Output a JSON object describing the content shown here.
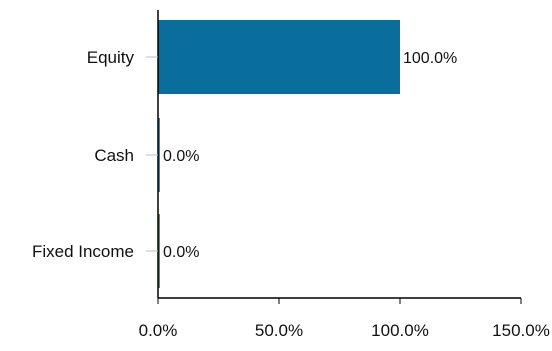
{
  "chart_data": {
    "type": "bar",
    "orientation": "horizontal",
    "categories": [
      "Equity",
      "Cash",
      "Fixed Income"
    ],
    "values": [
      100.0,
      0.0,
      0.0
    ],
    "data_labels": [
      "100.0%",
      "0.0%",
      "0.0%"
    ],
    "xlim": [
      0,
      150
    ],
    "x_ticks": [
      0,
      50,
      100,
      150
    ],
    "x_tick_labels": [
      "0.0%",
      "50.0%",
      "100.0%",
      "150.0%"
    ],
    "grid": false,
    "legend": "none",
    "colors": [
      "#0a6e9c",
      "#1e88e5",
      "#43a047"
    ]
  }
}
